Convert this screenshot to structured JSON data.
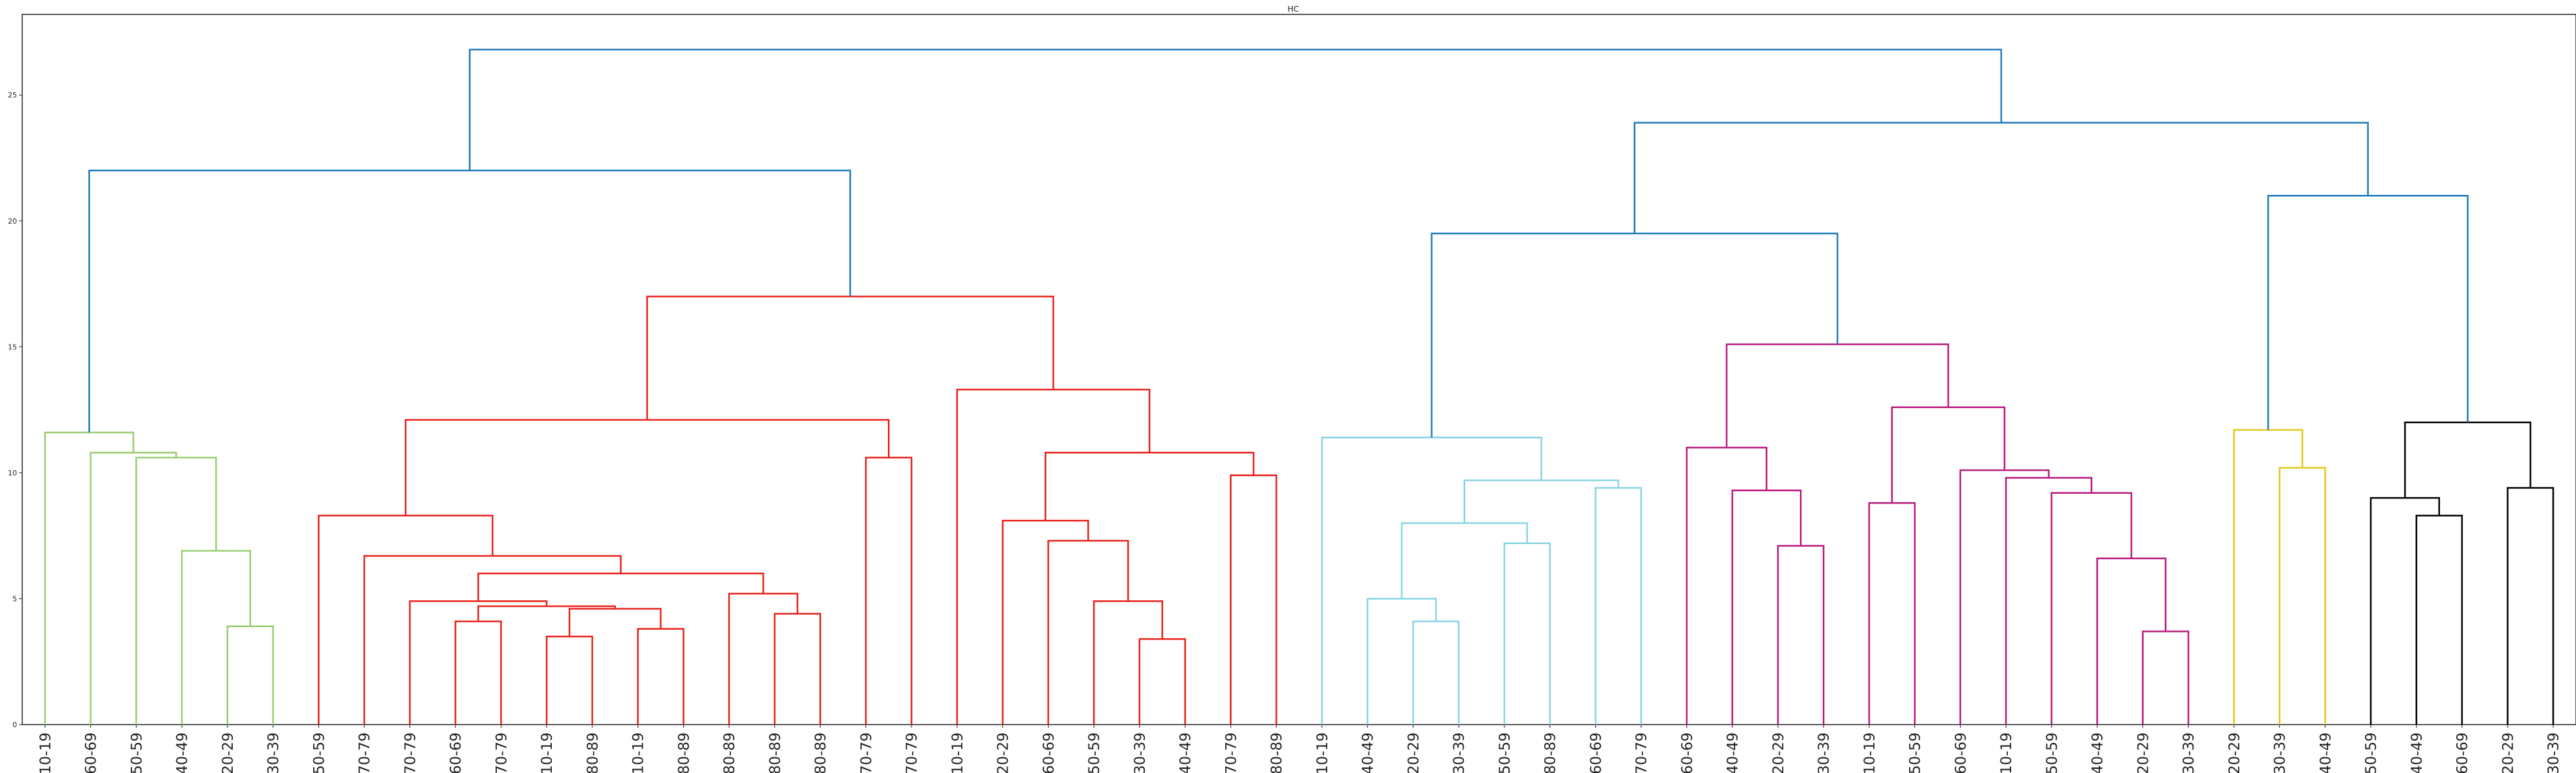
{
  "chart_data": {
    "type": "dendrogram",
    "title": "HC",
    "xlabel": "",
    "ylabel": "",
    "ylim": [
      0,
      28.2
    ],
    "yticks": [
      0,
      5,
      10,
      15,
      20,
      25
    ],
    "grid": false,
    "legend": "none",
    "leaf_labels": [
      "10-19",
      "60-69",
      "50-59",
      "40-49",
      "20-29",
      "30-39",
      "50-59",
      "70-79",
      "70-79",
      "60-69",
      "70-79",
      "10-19",
      "80-89",
      "10-19",
      "80-89",
      "80-89",
      "80-89",
      "80-89",
      "70-79",
      "70-79",
      "10-19",
      "20-29",
      "60-69",
      "50-59",
      "30-39",
      "40-49",
      "70-79",
      "80-89",
      "10-19",
      "40-49",
      "20-29",
      "30-39",
      "50-59",
      "80-89",
      "60-69",
      "70-79",
      "60-69",
      "40-49",
      "20-29",
      "30-39",
      "10-19",
      "50-59",
      "60-69",
      "10-19",
      "50-59",
      "40-49",
      "20-29",
      "30-39",
      "20-29",
      "30-39",
      "40-49",
      "50-59",
      "40-49",
      "60-69",
      "20-29",
      "30-39"
    ],
    "colors": {
      "green": "#9acd70",
      "red": "#e8211a",
      "cyan": "#88d4e4",
      "magenta": "#b8197e",
      "yellow": "#e3c81a",
      "black": "#000000",
      "blue": "#1f7bb8"
    },
    "merges": [
      {
        "a": 4,
        "b": 5,
        "h": 3.9,
        "color": "green"
      },
      {
        "a": 3,
        "b": 56,
        "h": 6.9,
        "color": "green"
      },
      {
        "a": 2,
        "b": 57,
        "h": 10.6,
        "color": "green"
      },
      {
        "a": 1,
        "b": 58,
        "h": 10.8,
        "color": "green"
      },
      {
        "a": 0,
        "b": 59,
        "h": 11.6,
        "color": "green"
      },
      {
        "a": 9,
        "b": 10,
        "h": 4.1,
        "color": "red"
      },
      {
        "a": 11,
        "b": 12,
        "h": 3.5,
        "color": "red"
      },
      {
        "a": 13,
        "b": 14,
        "h": 3.8,
        "color": "red"
      },
      {
        "a": 62,
        "b": 63,
        "h": 4.6,
        "color": "red"
      },
      {
        "a": 61,
        "b": 64,
        "h": 4.7,
        "color": "red"
      },
      {
        "a": 8,
        "b": 65,
        "h": 4.9,
        "color": "red"
      },
      {
        "a": 16,
        "b": 17,
        "h": 4.4,
        "color": "red"
      },
      {
        "a": 15,
        "b": 67,
        "h": 5.2,
        "color": "red"
      },
      {
        "a": 66,
        "b": 68,
        "h": 6.0,
        "color": "red"
      },
      {
        "a": 7,
        "b": 69,
        "h": 6.7,
        "color": "red"
      },
      {
        "a": 6,
        "b": 70,
        "h": 8.3,
        "color": "red"
      },
      {
        "a": 18,
        "b": 19,
        "h": 10.6,
        "color": "red"
      },
      {
        "a": 71,
        "b": 72,
        "h": 12.1,
        "color": "red"
      },
      {
        "a": 24,
        "b": 25,
        "h": 3.4,
        "color": "red"
      },
      {
        "a": 23,
        "b": 74,
        "h": 4.9,
        "color": "red"
      },
      {
        "a": 22,
        "b": 75,
        "h": 7.3,
        "color": "red"
      },
      {
        "a": 21,
        "b": 76,
        "h": 8.1,
        "color": "red"
      },
      {
        "a": 26,
        "b": 27,
        "h": 9.9,
        "color": "red"
      },
      {
        "a": 77,
        "b": 78,
        "h": 10.8,
        "color": "red"
      },
      {
        "a": 20,
        "b": 79,
        "h": 13.3,
        "color": "red"
      },
      {
        "a": 73,
        "b": 80,
        "h": 17.0,
        "color": "red"
      },
      {
        "a": 60,
        "b": 81,
        "h": 22.0,
        "color": "blue"
      },
      {
        "a": 30,
        "b": 31,
        "h": 4.1,
        "color": "cyan"
      },
      {
        "a": 29,
        "b": 83,
        "h": 5.0,
        "color": "cyan"
      },
      {
        "a": 32,
        "b": 33,
        "h": 7.2,
        "color": "cyan"
      },
      {
        "a": 84,
        "b": 85,
        "h": 8.0,
        "color": "cyan"
      },
      {
        "a": 34,
        "b": 35,
        "h": 9.4,
        "color": "cyan"
      },
      {
        "a": 86,
        "b": 87,
        "h": 9.7,
        "color": "cyan"
      },
      {
        "a": 28,
        "b": 88,
        "h": 11.4,
        "color": "cyan"
      },
      {
        "a": 38,
        "b": 39,
        "h": 7.1,
        "color": "magenta"
      },
      {
        "a": 37,
        "b": 90,
        "h": 9.3,
        "color": "magenta"
      },
      {
        "a": 36,
        "b": 91,
        "h": 11.0,
        "color": "magenta"
      },
      {
        "a": 40,
        "b": 41,
        "h": 8.8,
        "color": "magenta"
      },
      {
        "a": 46,
        "b": 47,
        "h": 3.7,
        "color": "magenta"
      },
      {
        "a": 45,
        "b": 94,
        "h": 6.6,
        "color": "magenta"
      },
      {
        "a": 44,
        "b": 95,
        "h": 9.2,
        "color": "magenta"
      },
      {
        "a": 43,
        "b": 96,
        "h": 9.8,
        "color": "magenta"
      },
      {
        "a": 42,
        "b": 97,
        "h": 10.1,
        "color": "magenta"
      },
      {
        "a": 93,
        "b": 98,
        "h": 12.6,
        "color": "magenta"
      },
      {
        "a": 92,
        "b": 99,
        "h": 15.1,
        "color": "magenta"
      },
      {
        "a": 89,
        "b": 100,
        "h": 19.5,
        "color": "blue"
      },
      {
        "a": 49,
        "b": 50,
        "h": 10.2,
        "color": "yellow"
      },
      {
        "a": 48,
        "b": 102,
        "h": 11.7,
        "color": "yellow"
      },
      {
        "a": 52,
        "b": 53,
        "h": 8.3,
        "color": "black"
      },
      {
        "a": 51,
        "b": 104,
        "h": 9.0,
        "color": "black"
      },
      {
        "a": 54,
        "b": 55,
        "h": 9.4,
        "color": "black"
      },
      {
        "a": 105,
        "b": 106,
        "h": 12.0,
        "color": "black"
      },
      {
        "a": 103,
        "b": 107,
        "h": 21.0,
        "color": "blue"
      },
      {
        "a": 101,
        "b": 108,
        "h": 23.9,
        "color": "blue"
      },
      {
        "a": 82,
        "b": 109,
        "h": 26.8,
        "color": "blue"
      }
    ]
  }
}
